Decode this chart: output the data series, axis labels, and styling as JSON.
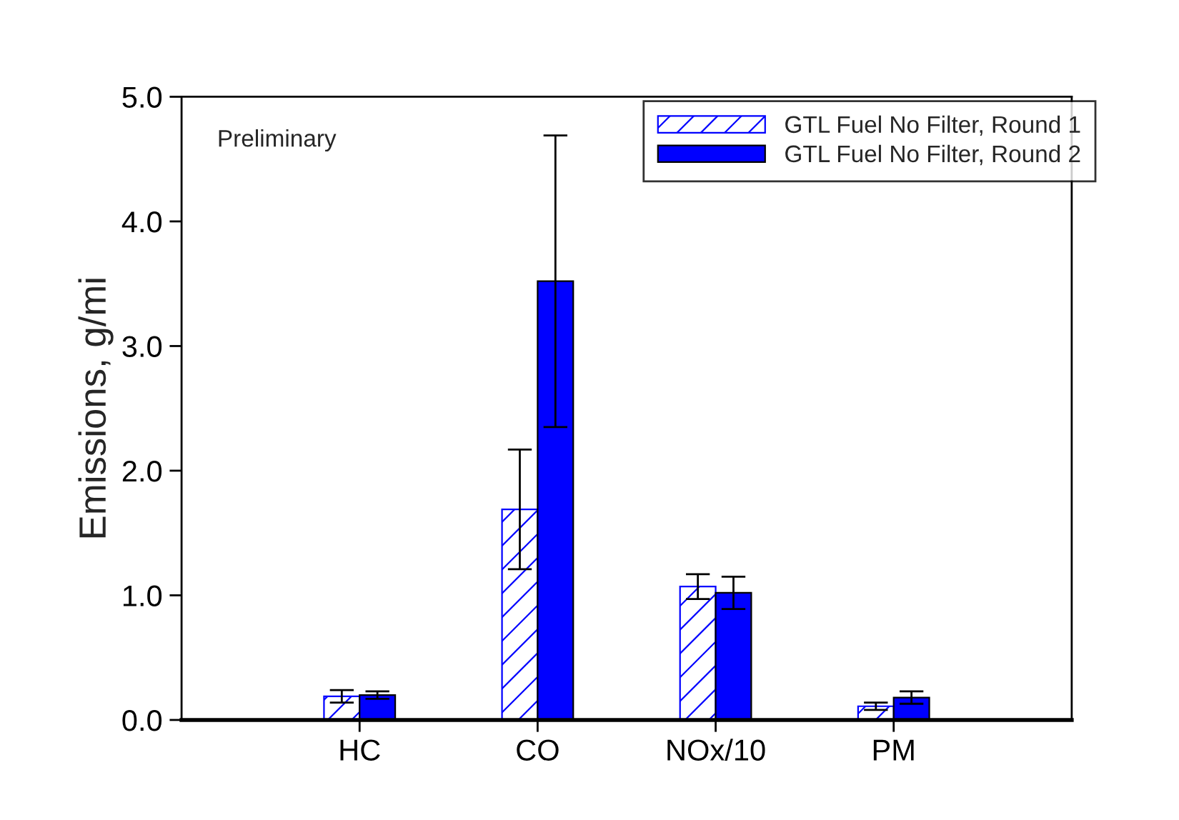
{
  "chart_data": {
    "type": "bar",
    "ylabel": "Emissions, g/mi",
    "categories": [
      "HC",
      "CO",
      "NOx/10",
      "PM"
    ],
    "series": [
      {
        "name": "GTL Fuel No Filter, Round 1",
        "color": "#0000ff",
        "values": [
          0.19,
          1.69,
          1.07,
          0.11
        ],
        "errors": [
          0.05,
          0.48,
          0.1,
          0.03
        ]
      },
      {
        "name": "GTL Fuel No Filter, Round 2",
        "color": "#0000ff",
        "values": [
          0.2,
          3.52,
          1.02,
          0.18
        ],
        "errors": [
          0.03,
          1.17,
          0.13,
          0.05
        ]
      }
    ],
    "ylim": [
      0,
      5
    ],
    "yticks": [
      {
        "value": 0,
        "label": "0.0"
      },
      {
        "value": 1,
        "label": "1.0"
      },
      {
        "value": 2,
        "label": "2.0"
      },
      {
        "value": 3,
        "label": "3.0"
      },
      {
        "value": 4,
        "label": "4.0"
      },
      {
        "value": 5,
        "label": "5.0"
      }
    ],
    "annotations": [
      "Preliminary"
    ],
    "legend": "top right",
    "grid": false
  }
}
